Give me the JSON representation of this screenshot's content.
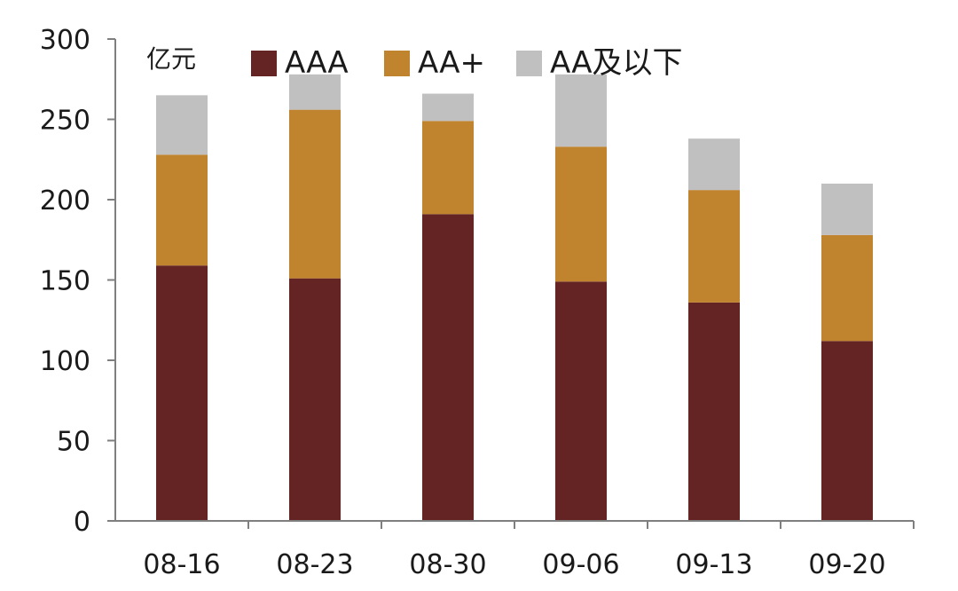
{
  "chart_data": {
    "type": "bar",
    "stacked": true,
    "unit_label": "亿元",
    "categories": [
      "08-16",
      "08-23",
      "08-30",
      "09-06",
      "09-13",
      "09-20"
    ],
    "series": [
      {
        "name": "AAA",
        "color": "#632423",
        "values": [
          159,
          151,
          191,
          149,
          136,
          112
        ]
      },
      {
        "name": "AA+",
        "color": "#c0832e",
        "values": [
          69,
          105,
          58,
          84,
          70,
          66
        ]
      },
      {
        "name": "AA及以下",
        "color": "#c0c0c0",
        "values": [
          37,
          22,
          17,
          45,
          32,
          32
        ]
      }
    ],
    "yticks": [
      0,
      50,
      100,
      150,
      200,
      250,
      300
    ],
    "ylim": [
      0,
      300
    ],
    "legend_position": "top",
    "grid": false
  }
}
